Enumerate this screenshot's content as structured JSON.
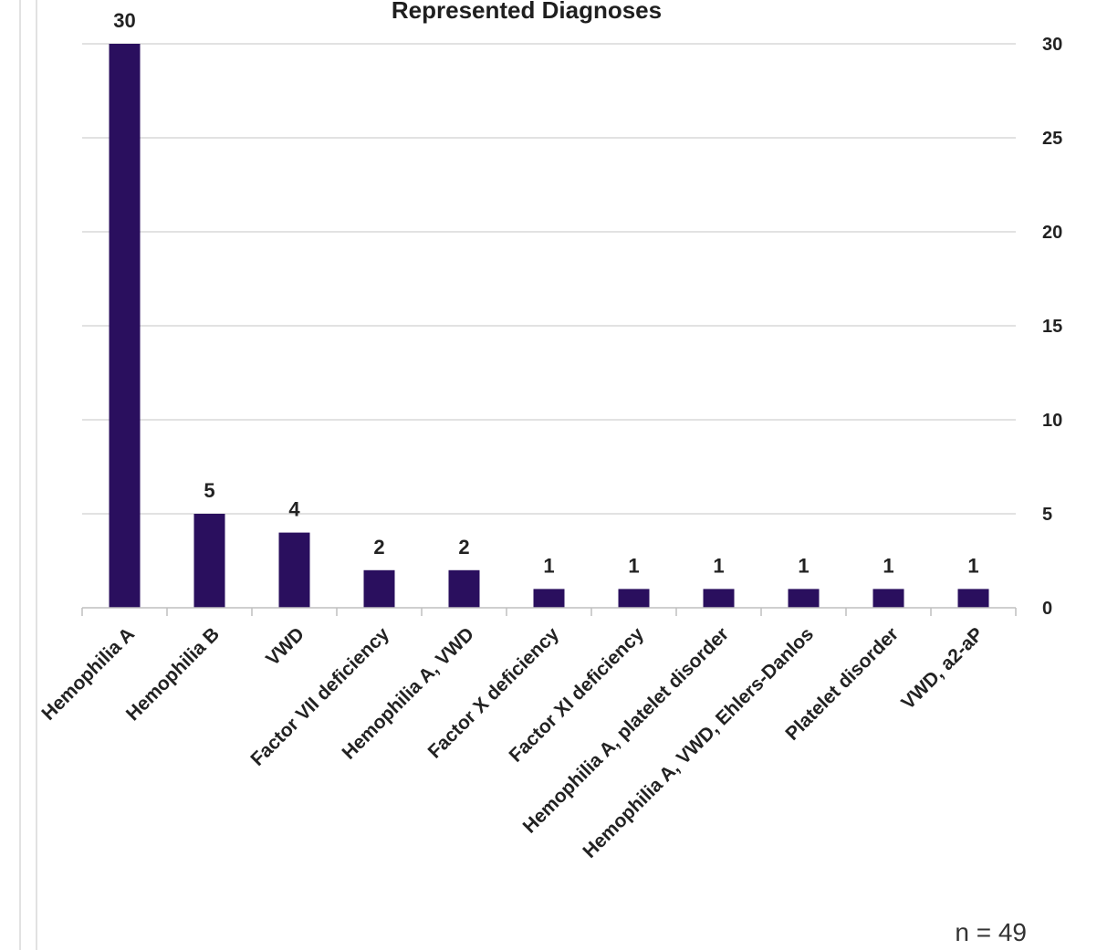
{
  "chart_data": {
    "type": "bar",
    "title": "Represented Diagnoses",
    "categories": [
      "Hemophilia A",
      "Hemophilia B",
      "VWD",
      "Factor VII deficiency",
      "Hemophilia A, VWD",
      "Factor X deficiency",
      "Factor XI deficiency",
      "Hemophilia A, platelet disorder",
      "Hemophilia A, VWD, Ehlers-Danlos",
      "Platelet disorder",
      "VWD, a2-aP"
    ],
    "values": [
      30,
      5,
      4,
      2,
      2,
      1,
      1,
      1,
      1,
      1,
      1
    ],
    "ylim": [
      0,
      30
    ],
    "yticks": [
      0,
      5,
      10,
      15,
      20,
      25,
      30
    ],
    "y_axis_side": "right",
    "grid": true,
    "data_labels": true,
    "bar_color": "#2a0f5e",
    "annotation": "n = 49"
  }
}
